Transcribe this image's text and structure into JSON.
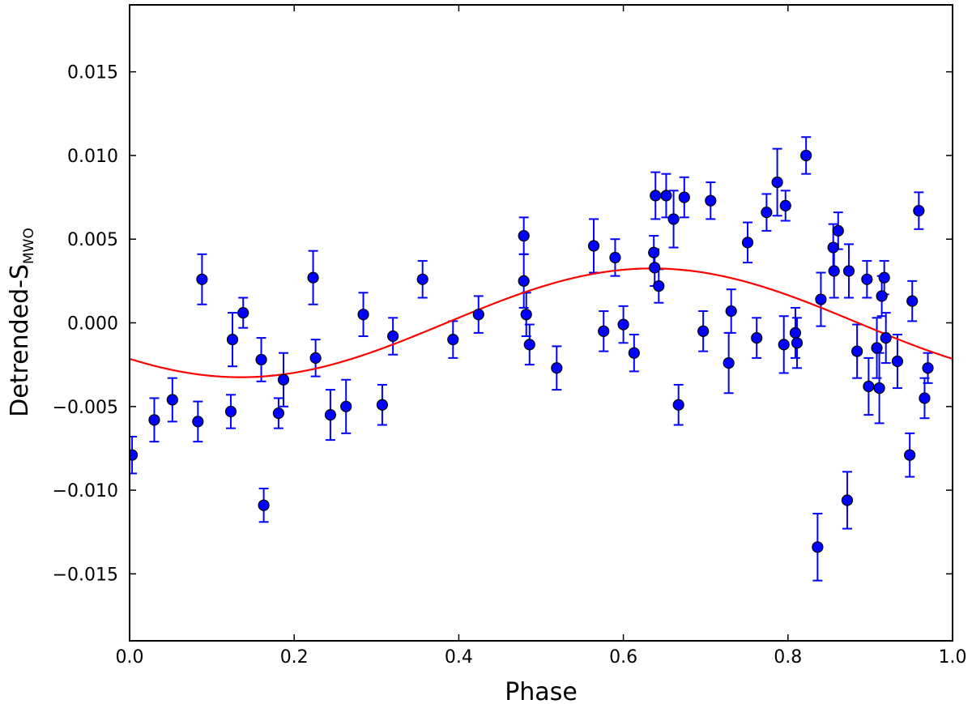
{
  "chart_data": {
    "type": "scatter",
    "title": "",
    "xlabel": "Phase",
    "ylabel_main": "Detrended-S",
    "ylabel_sub": "MWO",
    "xlim": [
      0.0,
      1.0
    ],
    "ylim": [
      -0.019,
      0.019
    ],
    "xticks": [
      0.0,
      0.2,
      0.4,
      0.6,
      0.8,
      1.0
    ],
    "xtick_labels": [
      "0.0",
      "0.2",
      "0.4",
      "0.6",
      "0.8",
      "1.0"
    ],
    "yticks": [
      -0.015,
      -0.01,
      -0.005,
      0.0,
      0.005,
      0.01,
      0.015
    ],
    "ytick_labels": [
      "−0.015",
      "−0.010",
      "−0.005",
      "0.000",
      "0.005",
      "0.010",
      "0.015"
    ],
    "grid": false,
    "colors": {
      "points": "#0000ff",
      "errorbars": "#0000ff",
      "fit": "#ff0000",
      "edge": "#000000"
    },
    "fit": {
      "name": "sinusoid fit",
      "amplitude": 0.00325,
      "phase_of_max": 0.635,
      "offset": 0.0
    },
    "series": [
      {
        "name": "observations",
        "points": [
          {
            "x": 0.003,
            "y": -0.0079,
            "err": 0.0011
          },
          {
            "x": 0.03,
            "y": -0.0058,
            "err": 0.0013
          },
          {
            "x": 0.052,
            "y": -0.0046,
            "err": 0.0013
          },
          {
            "x": 0.083,
            "y": -0.0059,
            "err": 0.0012
          },
          {
            "x": 0.088,
            "y": 0.0026,
            "err": 0.0015
          },
          {
            "x": 0.123,
            "y": -0.0053,
            "err": 0.001
          },
          {
            "x": 0.125,
            "y": -0.001,
            "err": 0.0016
          },
          {
            "x": 0.138,
            "y": 0.0006,
            "err": 0.0009
          },
          {
            "x": 0.16,
            "y": -0.0022,
            "err": 0.0013
          },
          {
            "x": 0.163,
            "y": -0.0109,
            "err": 0.001
          },
          {
            "x": 0.181,
            "y": -0.0054,
            "err": 0.0009
          },
          {
            "x": 0.187,
            "y": -0.0034,
            "err": 0.0016
          },
          {
            "x": 0.223,
            "y": 0.0027,
            "err": 0.0016
          },
          {
            "x": 0.226,
            "y": -0.0021,
            "err": 0.0011
          },
          {
            "x": 0.244,
            "y": -0.0055,
            "err": 0.0015
          },
          {
            "x": 0.263,
            "y": -0.005,
            "err": 0.0016
          },
          {
            "x": 0.284,
            "y": 0.0005,
            "err": 0.0013
          },
          {
            "x": 0.307,
            "y": -0.0049,
            "err": 0.0012
          },
          {
            "x": 0.32,
            "y": -0.0008,
            "err": 0.0011
          },
          {
            "x": 0.356,
            "y": 0.0026,
            "err": 0.0011
          },
          {
            "x": 0.393,
            "y": -0.001,
            "err": 0.0011
          },
          {
            "x": 0.424,
            "y": 0.0005,
            "err": 0.0011
          },
          {
            "x": 0.479,
            "y": 0.0052,
            "err": 0.0011
          },
          {
            "x": 0.479,
            "y": 0.0025,
            "err": 0.0016
          },
          {
            "x": 0.482,
            "y": 0.0005,
            "err": 0.0013
          },
          {
            "x": 0.486,
            "y": -0.0013,
            "err": 0.0012
          },
          {
            "x": 0.519,
            "y": -0.0027,
            "err": 0.0013
          },
          {
            "x": 0.564,
            "y": 0.0046,
            "err": 0.0016
          },
          {
            "x": 0.576,
            "y": -0.0005,
            "err": 0.0012
          },
          {
            "x": 0.59,
            "y": 0.0039,
            "err": 0.0011
          },
          {
            "x": 0.6,
            "y": -0.0001,
            "err": 0.0011
          },
          {
            "x": 0.613,
            "y": -0.0018,
            "err": 0.0011
          },
          {
            "x": 0.637,
            "y": 0.0042,
            "err": 0.001
          },
          {
            "x": 0.638,
            "y": 0.0033,
            "err": 0.0011
          },
          {
            "x": 0.639,
            "y": 0.0076,
            "err": 0.0014
          },
          {
            "x": 0.643,
            "y": 0.0022,
            "err": 0.001
          },
          {
            "x": 0.652,
            "y": 0.0076,
            "err": 0.0013
          },
          {
            "x": 0.661,
            "y": 0.0062,
            "err": 0.0017
          },
          {
            "x": 0.667,
            "y": -0.0049,
            "err": 0.0012
          },
          {
            "x": 0.674,
            "y": 0.0075,
            "err": 0.0012
          },
          {
            "x": 0.697,
            "y": -0.0005,
            "err": 0.0012
          },
          {
            "x": 0.706,
            "y": 0.0073,
            "err": 0.0011
          },
          {
            "x": 0.728,
            "y": -0.0024,
            "err": 0.0018
          },
          {
            "x": 0.731,
            "y": 0.0007,
            "err": 0.0013
          },
          {
            "x": 0.751,
            "y": 0.0048,
            "err": 0.0012
          },
          {
            "x": 0.762,
            "y": -0.0009,
            "err": 0.0012
          },
          {
            "x": 0.774,
            "y": 0.0066,
            "err": 0.0011
          },
          {
            "x": 0.787,
            "y": 0.0084,
            "err": 0.002
          },
          {
            "x": 0.795,
            "y": -0.0013,
            "err": 0.0017
          },
          {
            "x": 0.797,
            "y": 0.007,
            "err": 0.0009
          },
          {
            "x": 0.809,
            "y": -0.0006,
            "err": 0.0015
          },
          {
            "x": 0.811,
            "y": -0.0012,
            "err": 0.0015
          },
          {
            "x": 0.822,
            "y": 0.01,
            "err": 0.0011
          },
          {
            "x": 0.836,
            "y": -0.0134,
            "err": 0.002
          },
          {
            "x": 0.84,
            "y": 0.0014,
            "err": 0.0016
          },
          {
            "x": 0.855,
            "y": 0.0045,
            "err": 0.0014
          },
          {
            "x": 0.856,
            "y": 0.0031,
            "err": 0.0016
          },
          {
            "x": 0.861,
            "y": 0.0055,
            "err": 0.0011
          },
          {
            "x": 0.872,
            "y": -0.0106,
            "err": 0.0017
          },
          {
            "x": 0.874,
            "y": 0.0031,
            "err": 0.0016
          },
          {
            "x": 0.884,
            "y": -0.0017,
            "err": 0.0016
          },
          {
            "x": 0.896,
            "y": 0.0026,
            "err": 0.0011
          },
          {
            "x": 0.898,
            "y": -0.0038,
            "err": 0.0017
          },
          {
            "x": 0.908,
            "y": -0.0015,
            "err": 0.0018
          },
          {
            "x": 0.911,
            "y": -0.0039,
            "err": 0.0021
          },
          {
            "x": 0.914,
            "y": 0.0016,
            "err": 0.0012
          },
          {
            "x": 0.917,
            "y": 0.0027,
            "err": 0.001
          },
          {
            "x": 0.919,
            "y": -0.0009,
            "err": 0.0015
          },
          {
            "x": 0.933,
            "y": -0.0023,
            "err": 0.0016
          },
          {
            "x": 0.948,
            "y": -0.0079,
            "err": 0.0013
          },
          {
            "x": 0.951,
            "y": 0.0013,
            "err": 0.0012
          },
          {
            "x": 0.959,
            "y": 0.0067,
            "err": 0.0011
          },
          {
            "x": 0.966,
            "y": -0.0045,
            "err": 0.0012
          },
          {
            "x": 0.97,
            "y": -0.0027,
            "err": 0.0009
          }
        ]
      }
    ]
  }
}
